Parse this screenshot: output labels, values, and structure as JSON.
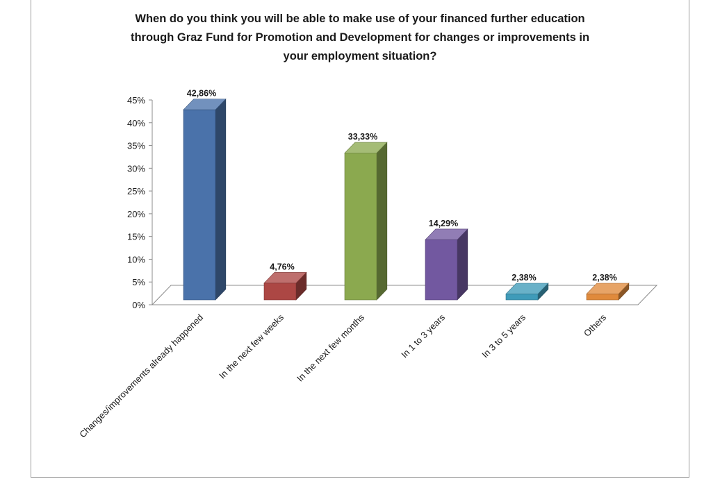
{
  "chart_data": {
    "type": "bar",
    "title_lines": [
      "When do you think you will be able to make use of your financed further education",
      "through Graz Fund for Promotion and Development for changes or improvements in",
      "your employment situation?"
    ],
    "categories": [
      "Changes/improvements already happened",
      "In the next few weeks",
      "In the next few months",
      "In 1 to 3 years",
      "In 3 to 5 years",
      "Others"
    ],
    "values": [
      42.86,
      4.76,
      33.33,
      14.29,
      2.38,
      2.38
    ],
    "value_labels": [
      "42,86%",
      "4,76%",
      "33,33%",
      "14,29%",
      "2,38%",
      "2,38%"
    ],
    "colors": [
      "#4a72aa",
      "#ac4744",
      "#8ba94f",
      "#7258a0",
      "#3f9bb9",
      "#e08a3c"
    ],
    "ylim": [
      0,
      45
    ],
    "yticks": [
      {
        "value": 0,
        "label": "0%"
      },
      {
        "value": 5,
        "label": "5%"
      },
      {
        "value": 10,
        "label": "10%"
      },
      {
        "value": 15,
        "label": "15%"
      },
      {
        "value": 20,
        "label": "20%"
      },
      {
        "value": 25,
        "label": "25%"
      },
      {
        "value": 30,
        "label": "30%"
      },
      {
        "value": 35,
        "label": "35%"
      },
      {
        "value": 40,
        "label": "40%"
      },
      {
        "value": 45,
        "label": "45%"
      }
    ],
    "xlabel": "",
    "ylabel": "",
    "grid": false,
    "legend": "none",
    "style": "3d-bar"
  }
}
